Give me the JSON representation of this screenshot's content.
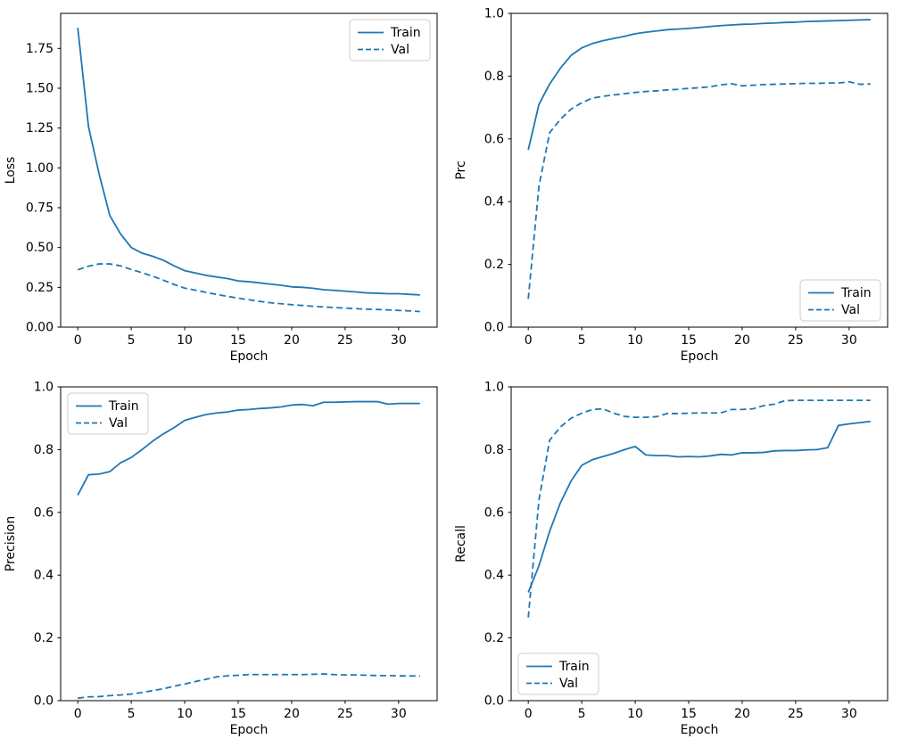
{
  "figure": {
    "background": "#ffffff",
    "line_color": "#1f77b4",
    "axis_color": "#000000",
    "legend_border_color": "#cccccc",
    "legend_fill": "#ffffff"
  },
  "chart_data": [
    {
      "type": "line",
      "name": "loss",
      "xlabel": "Epoch",
      "ylabel": "Loss",
      "legend_pos": "upper-right",
      "xlim": [
        -1.6,
        33.6
      ],
      "ylim": [
        0,
        1.97
      ],
      "xticks": [
        0,
        5,
        10,
        15,
        20,
        25,
        30
      ],
      "xtick_labels": [
        "0",
        "5",
        "10",
        "15",
        "20",
        "25",
        "30"
      ],
      "yticks": [
        0,
        0.25,
        0.5,
        0.75,
        1.0,
        1.25,
        1.5,
        1.75
      ],
      "ytick_labels": [
        "0.00",
        "0.25",
        "0.50",
        "0.75",
        "1.00",
        "1.25",
        "1.50",
        "1.75"
      ],
      "x": [
        0,
        1,
        2,
        3,
        4,
        5,
        6,
        7,
        8,
        9,
        10,
        11,
        12,
        13,
        14,
        15,
        16,
        17,
        18,
        19,
        20,
        21,
        22,
        23,
        24,
        25,
        26,
        27,
        28,
        29,
        30,
        31,
        32
      ],
      "series": [
        {
          "name": "Train",
          "style": "solid",
          "values": [
            1.88,
            1.26,
            0.96,
            0.7,
            0.585,
            0.5,
            0.465,
            0.445,
            0.42,
            0.385,
            0.355,
            0.34,
            0.325,
            0.315,
            0.305,
            0.29,
            0.285,
            0.278,
            0.27,
            0.263,
            0.253,
            0.25,
            0.244,
            0.235,
            0.231,
            0.226,
            0.221,
            0.215,
            0.213,
            0.21,
            0.21,
            0.206,
            0.202
          ]
        },
        {
          "name": "Val",
          "style": "dashed",
          "values": [
            0.36,
            0.383,
            0.397,
            0.397,
            0.385,
            0.362,
            0.342,
            0.32,
            0.295,
            0.268,
            0.245,
            0.232,
            0.218,
            0.205,
            0.193,
            0.182,
            0.172,
            0.162,
            0.153,
            0.147,
            0.141,
            0.136,
            0.131,
            0.127,
            0.123,
            0.12,
            0.116,
            0.113,
            0.111,
            0.108,
            0.105,
            0.102,
            0.098
          ]
        }
      ]
    },
    {
      "type": "line",
      "name": "prc",
      "xlabel": "Epoch",
      "ylabel": "Prc",
      "legend_pos": "lower-right",
      "xlim": [
        -1.6,
        33.6
      ],
      "ylim": [
        0,
        1.0
      ],
      "xticks": [
        0,
        5,
        10,
        15,
        20,
        25,
        30
      ],
      "xtick_labels": [
        "0",
        "5",
        "10",
        "15",
        "20",
        "25",
        "30"
      ],
      "yticks": [
        0,
        0.2,
        0.4,
        0.6,
        0.8,
        1.0
      ],
      "ytick_labels": [
        "0.0",
        "0.2",
        "0.4",
        "0.6",
        "0.8",
        "1.0"
      ],
      "x": [
        0,
        1,
        2,
        3,
        4,
        5,
        6,
        7,
        8,
        9,
        10,
        11,
        12,
        13,
        14,
        15,
        16,
        17,
        18,
        19,
        20,
        21,
        22,
        23,
        24,
        25,
        26,
        27,
        28,
        29,
        30,
        31,
        32
      ],
      "series": [
        {
          "name": "Train",
          "style": "solid",
          "values": [
            0.565,
            0.71,
            0.775,
            0.825,
            0.866,
            0.89,
            0.904,
            0.913,
            0.92,
            0.927,
            0.935,
            0.94,
            0.944,
            0.948,
            0.95,
            0.952,
            0.955,
            0.958,
            0.961,
            0.963,
            0.965,
            0.966,
            0.968,
            0.969,
            0.971,
            0.972,
            0.974,
            0.975,
            0.976,
            0.977,
            0.978,
            0.979,
            0.98
          ]
        },
        {
          "name": "Val",
          "style": "dashed",
          "values": [
            0.09,
            0.45,
            0.62,
            0.662,
            0.695,
            0.715,
            0.73,
            0.736,
            0.74,
            0.744,
            0.748,
            0.751,
            0.753,
            0.756,
            0.758,
            0.761,
            0.763,
            0.766,
            0.772,
            0.776,
            0.769,
            0.771,
            0.773,
            0.774,
            0.775,
            0.776,
            0.777,
            0.777,
            0.778,
            0.778,
            0.782,
            0.774,
            0.775
          ]
        }
      ]
    },
    {
      "type": "line",
      "name": "precision",
      "xlabel": "Epoch",
      "ylabel": "Precision",
      "legend_pos": "upper-left",
      "xlim": [
        -1.6,
        33.6
      ],
      "ylim": [
        0,
        1.0
      ],
      "xticks": [
        0,
        5,
        10,
        15,
        20,
        25,
        30
      ],
      "xtick_labels": [
        "0",
        "5",
        "10",
        "15",
        "20",
        "25",
        "30"
      ],
      "yticks": [
        0,
        0.2,
        0.4,
        0.6,
        0.8,
        1.0
      ],
      "ytick_labels": [
        "0.0",
        "0.2",
        "0.4",
        "0.6",
        "0.8",
        "1.0"
      ],
      "x": [
        0,
        1,
        2,
        3,
        4,
        5,
        6,
        7,
        8,
        9,
        10,
        11,
        12,
        13,
        14,
        15,
        16,
        17,
        18,
        19,
        20,
        21,
        22,
        23,
        24,
        25,
        26,
        27,
        28,
        29,
        30,
        31,
        32
      ],
      "series": [
        {
          "name": "Train",
          "style": "solid",
          "values": [
            0.655,
            0.72,
            0.722,
            0.73,
            0.758,
            0.775,
            0.8,
            0.827,
            0.85,
            0.87,
            0.893,
            0.903,
            0.912,
            0.917,
            0.92,
            0.926,
            0.928,
            0.931,
            0.933,
            0.936,
            0.942,
            0.944,
            0.94,
            0.951,
            0.951,
            0.952,
            0.953,
            0.953,
            0.953,
            0.945,
            0.947,
            0.947,
            0.947
          ]
        },
        {
          "name": "Val",
          "style": "dashed",
          "values": [
            0.008,
            0.012,
            0.013,
            0.016,
            0.018,
            0.021,
            0.026,
            0.032,
            0.038,
            0.046,
            0.053,
            0.061,
            0.068,
            0.076,
            0.079,
            0.081,
            0.083,
            0.083,
            0.083,
            0.083,
            0.083,
            0.083,
            0.084,
            0.085,
            0.083,
            0.082,
            0.082,
            0.081,
            0.08,
            0.08,
            0.079,
            0.079,
            0.078
          ]
        }
      ]
    },
    {
      "type": "line",
      "name": "recall",
      "xlabel": "Epoch",
      "ylabel": "Recall",
      "legend_pos": "lower-left",
      "xlim": [
        -1.6,
        33.6
      ],
      "ylim": [
        0,
        1.0
      ],
      "xticks": [
        0,
        5,
        10,
        15,
        20,
        25,
        30
      ],
      "xtick_labels": [
        "0",
        "5",
        "10",
        "15",
        "20",
        "25",
        "30"
      ],
      "yticks": [
        0,
        0.2,
        0.4,
        0.6,
        0.8,
        1.0
      ],
      "ytick_labels": [
        "0.0",
        "0.2",
        "0.4",
        "0.6",
        "0.8",
        "1.0"
      ],
      "x": [
        0,
        1,
        2,
        3,
        4,
        5,
        6,
        7,
        8,
        9,
        10,
        11,
        12,
        13,
        14,
        15,
        16,
        17,
        18,
        19,
        20,
        21,
        22,
        23,
        24,
        25,
        26,
        27,
        28,
        29,
        30,
        31,
        32
      ],
      "series": [
        {
          "name": "Train",
          "style": "solid",
          "values": [
            0.345,
            0.43,
            0.54,
            0.63,
            0.7,
            0.75,
            0.768,
            0.778,
            0.788,
            0.8,
            0.81,
            0.783,
            0.781,
            0.781,
            0.777,
            0.778,
            0.777,
            0.78,
            0.785,
            0.783,
            0.79,
            0.79,
            0.791,
            0.796,
            0.797,
            0.797,
            0.799,
            0.8,
            0.806,
            0.877,
            0.882,
            0.886,
            0.89
          ]
        },
        {
          "name": "Val",
          "style": "dashed",
          "values": [
            0.265,
            0.64,
            0.83,
            0.872,
            0.9,
            0.916,
            0.928,
            0.93,
            0.916,
            0.906,
            0.903,
            0.903,
            0.905,
            0.915,
            0.915,
            0.916,
            0.917,
            0.917,
            0.917,
            0.928,
            0.928,
            0.93,
            0.94,
            0.945,
            0.956,
            0.957,
            0.957,
            0.957,
            0.957,
            0.957,
            0.957,
            0.957,
            0.957
          ]
        }
      ]
    }
  ]
}
